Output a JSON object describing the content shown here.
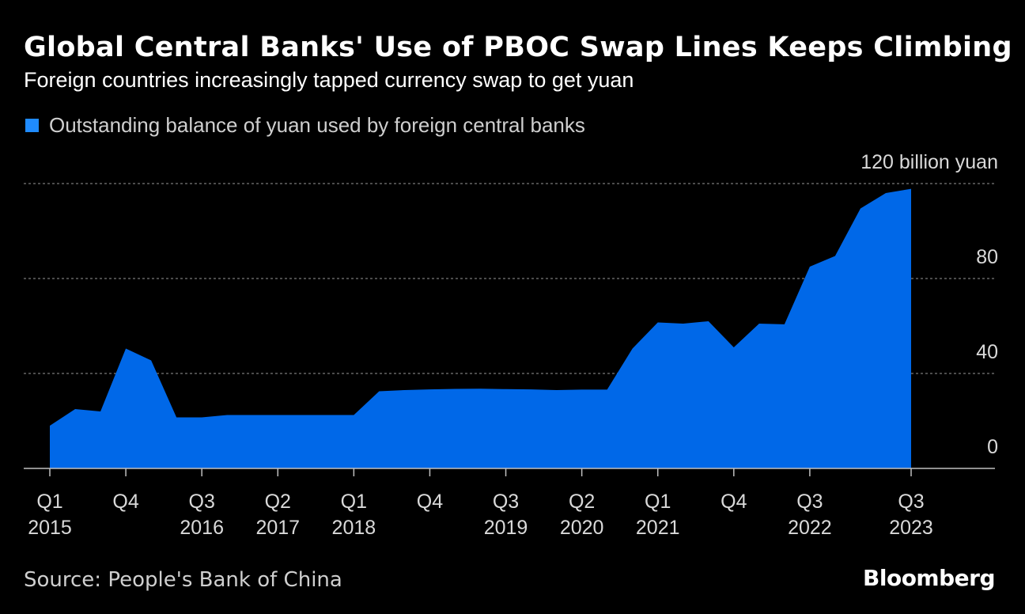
{
  "title": "Global Central Banks' Use of PBOC Swap Lines Keeps Climbing",
  "subtitle": "Foreign countries increasingly tapped currency swap to get yuan",
  "source": "Source: People's Bank of China",
  "brand": "Bloomberg",
  "colors": {
    "background": "#000000",
    "area": "#0068E8",
    "legend_swatch": "#1F8BFF",
    "grid": "#7a7a7a",
    "axis": "#bfbfbf",
    "tick_text": "#d9d9d9"
  },
  "chart_data": {
    "type": "area",
    "y_unit_label": "120 billion yuan",
    "ylim": [
      0,
      120
    ],
    "y_ticks": [
      {
        "value": 0,
        "label": "0"
      },
      {
        "value": 40,
        "label": "40"
      },
      {
        "value": 80,
        "label": "80"
      },
      {
        "value": 120,
        "label": "120 billion yuan"
      }
    ],
    "grid": "horizontal dashed",
    "legend_position": "top-left",
    "series": [
      {
        "name": "Outstanding balance of yuan used by foreign central banks",
        "points": [
          {
            "q": "2015 Q1",
            "v": 18
          },
          {
            "q": "2015 Q2",
            "v": 25
          },
          {
            "q": "2015 Q3",
            "v": 24
          },
          {
            "q": "2015 Q4",
            "v": 50.5
          },
          {
            "q": "2016 Q1",
            "v": 45.5
          },
          {
            "q": "2016 Q2",
            "v": 21.5
          },
          {
            "q": "2016 Q3",
            "v": 21.5
          },
          {
            "q": "2016 Q4",
            "v": 22.5
          },
          {
            "q": "2017 Q1",
            "v": 22.5
          },
          {
            "q": "2017 Q2",
            "v": 22.5
          },
          {
            "q": "2017 Q3",
            "v": 22.5
          },
          {
            "q": "2017 Q4",
            "v": 22.5
          },
          {
            "q": "2018 Q1",
            "v": 22.5
          },
          {
            "q": "2018 Q2",
            "v": 32.5
          },
          {
            "q": "2018 Q3",
            "v": 33
          },
          {
            "q": "2018 Q4",
            "v": 33.3
          },
          {
            "q": "2019 Q1",
            "v": 33.5
          },
          {
            "q": "2019 Q2",
            "v": 33.6
          },
          {
            "q": "2019 Q3",
            "v": 33.4
          },
          {
            "q": "2019 Q4",
            "v": 33.3
          },
          {
            "q": "2020 Q1",
            "v": 33
          },
          {
            "q": "2020 Q2",
            "v": 33.2
          },
          {
            "q": "2020 Q3",
            "v": 33.2
          },
          {
            "q": "2020 Q4",
            "v": 50.5
          },
          {
            "q": "2021 Q1",
            "v": 61.5
          },
          {
            "q": "2021 Q2",
            "v": 61
          },
          {
            "q": "2021 Q3",
            "v": 62
          },
          {
            "q": "2021 Q4",
            "v": 51
          },
          {
            "q": "2022 Q1",
            "v": 61
          },
          {
            "q": "2022 Q2",
            "v": 60.7
          },
          {
            "q": "2022 Q3",
            "v": 85
          },
          {
            "q": "2022 Q4",
            "v": 89.5
          },
          {
            "q": "2023 Q1",
            "v": 109.5
          },
          {
            "q": "2023 Q2",
            "v": 116
          },
          {
            "q": "2023 Q3",
            "v": 117.8
          }
        ]
      }
    ],
    "x_ticks": [
      {
        "q": "2015 Q1",
        "line1": "Q1",
        "line2": "2015"
      },
      {
        "q": "2015 Q4",
        "line1": "Q4",
        "line2": ""
      },
      {
        "q": "2016 Q3",
        "line1": "Q3",
        "line2": "2016"
      },
      {
        "q": "2017 Q2",
        "line1": "Q2",
        "line2": "2017"
      },
      {
        "q": "2018 Q1",
        "line1": "Q1",
        "line2": "2018"
      },
      {
        "q": "2018 Q4",
        "line1": "Q4",
        "line2": ""
      },
      {
        "q": "2019 Q3",
        "line1": "Q3",
        "line2": "2019"
      },
      {
        "q": "2020 Q2",
        "line1": "Q2",
        "line2": "2020"
      },
      {
        "q": "2021 Q1",
        "line1": "Q1",
        "line2": "2021"
      },
      {
        "q": "2021 Q4",
        "line1": "Q4",
        "line2": ""
      },
      {
        "q": "2022 Q3",
        "line1": "Q3",
        "line2": "2022"
      },
      {
        "q": "2023 Q3",
        "line1": "Q3",
        "line2": "2023"
      }
    ]
  }
}
